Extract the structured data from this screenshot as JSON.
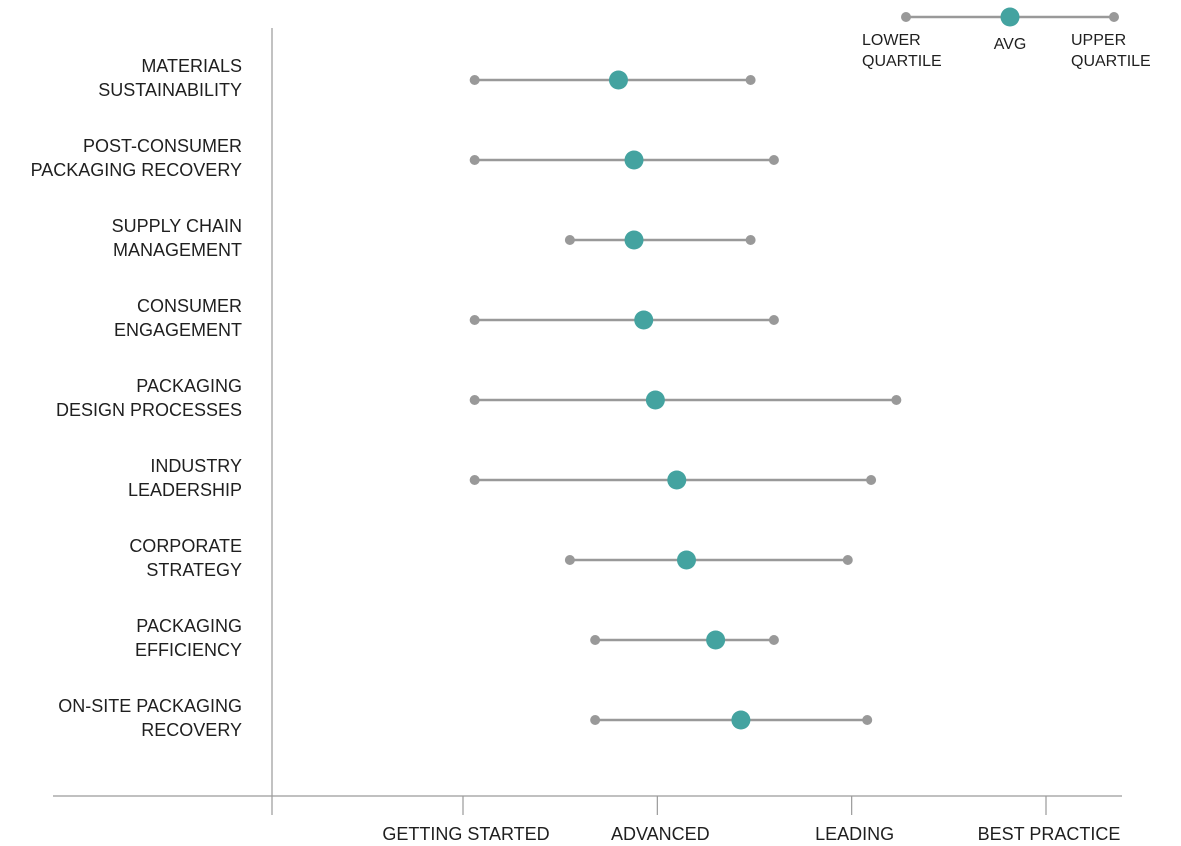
{
  "chart_data": {
    "type": "range-dot",
    "x_tick_labels": [
      "GETTING STARTED",
      "ADVANCED",
      "LEADING",
      "BEST PRACTICE"
    ],
    "x_tick_values": [
      1,
      2,
      3,
      4
    ],
    "xlim": [
      0.0,
      4.39
    ],
    "grid": false,
    "legend": {
      "placement": "top-right",
      "items": [
        {
          "role": "lower",
          "label": [
            "LOWER",
            "QUARTILE"
          ]
        },
        {
          "role": "avg",
          "label": [
            "AVG"
          ]
        },
        {
          "role": "upper",
          "label": [
            "UPPER",
            "QUARTILE"
          ]
        }
      ]
    },
    "colors": {
      "avg": "#44a3a0",
      "quartile": "#999999",
      "line": "#999999",
      "axis": "#9a9a9a"
    },
    "categories": [
      {
        "label": [
          "MATERIALS",
          "SUSTAINABILITY"
        ],
        "lower": 1.06,
        "avg": 1.8,
        "upper": 2.48
      },
      {
        "label": [
          "POST-CONSUMER",
          "PACKAGING RECOVERY"
        ],
        "lower": 1.06,
        "avg": 1.88,
        "upper": 2.6
      },
      {
        "label": [
          "SUPPLY CHAIN",
          "MANAGEMENT"
        ],
        "lower": 1.55,
        "avg": 1.88,
        "upper": 2.48
      },
      {
        "label": [
          "CONSUMER",
          "ENGAGEMENT"
        ],
        "lower": 1.06,
        "avg": 1.93,
        "upper": 2.6
      },
      {
        "label": [
          "PACKAGING",
          "DESIGN PROCESSES"
        ],
        "lower": 1.06,
        "avg": 1.99,
        "upper": 3.23
      },
      {
        "label": [
          "INDUSTRY",
          "LEADERSHIP"
        ],
        "lower": 1.06,
        "avg": 2.1,
        "upper": 3.1
      },
      {
        "label": [
          "CORPORATE",
          "STRATEGY"
        ],
        "lower": 1.55,
        "avg": 2.15,
        "upper": 2.98
      },
      {
        "label": [
          "PACKAGING",
          "EFFICIENCY"
        ],
        "lower": 1.68,
        "avg": 2.3,
        "upper": 2.6
      },
      {
        "label": [
          "ON-SITE PACKAGING",
          "RECOVERY"
        ],
        "lower": 1.68,
        "avg": 2.43,
        "upper": 3.08
      }
    ]
  }
}
